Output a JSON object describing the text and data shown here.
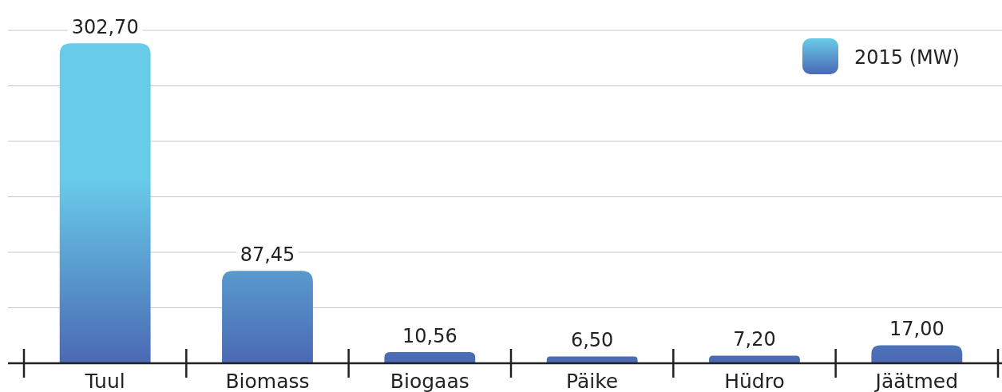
{
  "chart_data": {
    "type": "bar",
    "categories": [
      "Tuul",
      "Biomass",
      "Biogaas",
      "Päike",
      "Hüdro",
      "Jäätmed"
    ],
    "series": [
      {
        "name": "2015 (MW)",
        "color": "#4a69b3",
        "values": [
          302.7,
          87.45,
          10.56,
          6.5,
          7.2,
          17.0
        ],
        "value_labels": [
          "302,70",
          "87,45",
          "10,56",
          "6,50",
          "7,20",
          "17,00"
        ]
      }
    ],
    "yticks": [
      {
        "value": 52.5,
        "label": null
      },
      {
        "value": 105,
        "label": null
      },
      {
        "value": 157.5,
        "label": null
      },
      {
        "value": 210,
        "label": null
      },
      {
        "value": 262.5,
        "label": null
      },
      {
        "value": 315,
        "label": null
      }
    ],
    "grid": "y",
    "legend": "top right",
    "data_labels": true
  }
}
